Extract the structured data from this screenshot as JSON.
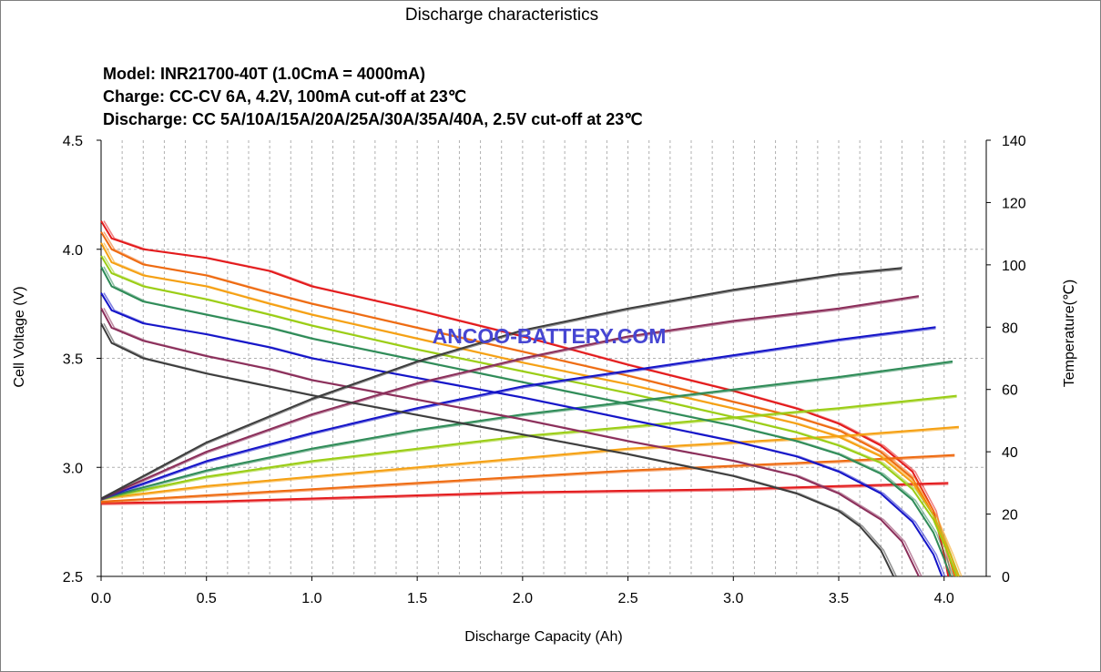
{
  "chart_data": {
    "type": "line",
    "title": "Discharge characteristics",
    "info_lines": [
      "Model: INR21700-40T (1.0CmA = 4000mA)",
      "Charge: CC-CV 6A, 4.2V, 100mA  cut-off at 23℃",
      "Discharge: CC 5A/10A/15A/20A/25A/30A/35A/40A,  2.5V cut-off at 23℃"
    ],
    "xlabel": "Discharge Capacity (Ah)",
    "ylabel": "Cell Voltage (V)",
    "y2label": "Temperature(℃)",
    "watermark": "ANCOO-BATTERY.COM",
    "xlim": [
      0,
      4.2
    ],
    "ylim": [
      2.5,
      4.5
    ],
    "y2lim": [
      0,
      140
    ],
    "xticks": [
      "0.0",
      "0.5",
      "1.0",
      "1.5",
      "2.0",
      "2.5",
      "3.0",
      "3.5",
      "4.0"
    ],
    "yticks": [
      "2.5",
      "3.0",
      "3.5",
      "4.0",
      "4.5"
    ],
    "y2ticks": [
      "0",
      "20",
      "40",
      "60",
      "80",
      "100",
      "120",
      "140"
    ],
    "grid": {
      "x_minor_step": 0.1,
      "y_step": 0.5,
      "style": "dashed"
    },
    "series": [
      {
        "color": "#e31a1c",
        "voltage": [
          [
            0,
            4.13
          ],
          [
            0.05,
            4.05
          ],
          [
            0.2,
            4.0
          ],
          [
            0.5,
            3.96
          ],
          [
            0.8,
            3.9
          ],
          [
            1.0,
            3.83
          ],
          [
            1.5,
            3.72
          ],
          [
            2.0,
            3.6
          ],
          [
            2.5,
            3.47
          ],
          [
            3.0,
            3.35
          ],
          [
            3.3,
            3.27
          ],
          [
            3.5,
            3.2
          ],
          [
            3.7,
            3.1
          ],
          [
            3.85,
            2.98
          ],
          [
            3.95,
            2.8
          ],
          [
            4.0,
            2.6
          ],
          [
            4.02,
            2.5
          ]
        ],
        "temperature": [
          [
            0,
            23.5
          ],
          [
            0.5,
            24
          ],
          [
            1.0,
            25
          ],
          [
            1.5,
            26
          ],
          [
            2.0,
            27
          ],
          [
            2.5,
            27.5
          ],
          [
            3.0,
            28
          ],
          [
            3.5,
            29
          ],
          [
            4.02,
            30
          ]
        ]
      },
      {
        "color": "#ee6a10",
        "voltage": [
          [
            0,
            4.08
          ],
          [
            0.05,
            4.0
          ],
          [
            0.2,
            3.93
          ],
          [
            0.5,
            3.88
          ],
          [
            0.8,
            3.8
          ],
          [
            1.0,
            3.75
          ],
          [
            1.5,
            3.64
          ],
          [
            2.0,
            3.53
          ],
          [
            2.5,
            3.42
          ],
          [
            3.0,
            3.3
          ],
          [
            3.3,
            3.23
          ],
          [
            3.5,
            3.17
          ],
          [
            3.7,
            3.07
          ],
          [
            3.85,
            2.95
          ],
          [
            3.95,
            2.78
          ],
          [
            4.02,
            2.6
          ],
          [
            4.05,
            2.5
          ]
        ],
        "temperature": [
          [
            0,
            24
          ],
          [
            0.5,
            26
          ],
          [
            1.0,
            28
          ],
          [
            1.5,
            30
          ],
          [
            2.0,
            32
          ],
          [
            2.5,
            34
          ],
          [
            3.0,
            35.5
          ],
          [
            3.5,
            37
          ],
          [
            4.05,
            39
          ]
        ]
      },
      {
        "color": "#f5a012",
        "voltage": [
          [
            0,
            4.03
          ],
          [
            0.05,
            3.94
          ],
          [
            0.2,
            3.88
          ],
          [
            0.5,
            3.83
          ],
          [
            0.8,
            3.75
          ],
          [
            1.0,
            3.7
          ],
          [
            1.5,
            3.59
          ],
          [
            2.0,
            3.48
          ],
          [
            2.5,
            3.38
          ],
          [
            3.0,
            3.27
          ],
          [
            3.3,
            3.2
          ],
          [
            3.5,
            3.14
          ],
          [
            3.7,
            3.05
          ],
          [
            3.85,
            2.93
          ],
          [
            3.95,
            2.78
          ],
          [
            4.03,
            2.6
          ],
          [
            4.07,
            2.5
          ]
        ],
        "temperature": [
          [
            0,
            25
          ],
          [
            0.5,
            29
          ],
          [
            1.0,
            32
          ],
          [
            1.5,
            35
          ],
          [
            2.0,
            38
          ],
          [
            2.5,
            41
          ],
          [
            3.0,
            43
          ],
          [
            3.5,
            45
          ],
          [
            4.07,
            48
          ]
        ]
      },
      {
        "color": "#9acd14",
        "voltage": [
          [
            0,
            3.97
          ],
          [
            0.05,
            3.89
          ],
          [
            0.2,
            3.83
          ],
          [
            0.5,
            3.77
          ],
          [
            0.8,
            3.7
          ],
          [
            1.0,
            3.65
          ],
          [
            1.5,
            3.54
          ],
          [
            2.0,
            3.44
          ],
          [
            2.5,
            3.34
          ],
          [
            3.0,
            3.23
          ],
          [
            3.3,
            3.16
          ],
          [
            3.5,
            3.1
          ],
          [
            3.7,
            3.02
          ],
          [
            3.85,
            2.9
          ],
          [
            3.95,
            2.76
          ],
          [
            4.02,
            2.6
          ],
          [
            4.06,
            2.5
          ]
        ],
        "temperature": [
          [
            0,
            25
          ],
          [
            0.5,
            32
          ],
          [
            1.0,
            37
          ],
          [
            1.5,
            41
          ],
          [
            2.0,
            45
          ],
          [
            2.5,
            48
          ],
          [
            3.0,
            51
          ],
          [
            3.5,
            54
          ],
          [
            4.06,
            58
          ]
        ]
      },
      {
        "color": "#2e8b57",
        "voltage": [
          [
            0,
            3.92
          ],
          [
            0.05,
            3.83
          ],
          [
            0.2,
            3.76
          ],
          [
            0.5,
            3.7
          ],
          [
            0.8,
            3.64
          ],
          [
            1.0,
            3.59
          ],
          [
            1.5,
            3.49
          ],
          [
            2.0,
            3.39
          ],
          [
            2.5,
            3.29
          ],
          [
            3.0,
            3.19
          ],
          [
            3.3,
            3.12
          ],
          [
            3.5,
            3.06
          ],
          [
            3.7,
            2.97
          ],
          [
            3.85,
            2.85
          ],
          [
            3.95,
            2.7
          ],
          [
            4.0,
            2.58
          ],
          [
            4.03,
            2.5
          ]
        ],
        "temperature": [
          [
            0,
            25
          ],
          [
            0.5,
            34
          ],
          [
            1.0,
            41
          ],
          [
            1.5,
            47
          ],
          [
            2.0,
            52
          ],
          [
            2.5,
            56
          ],
          [
            3.0,
            60
          ],
          [
            3.5,
            64
          ],
          [
            4.04,
            69
          ]
        ]
      },
      {
        "color": "#1414c8",
        "voltage": [
          [
            0,
            3.8
          ],
          [
            0.05,
            3.72
          ],
          [
            0.2,
            3.66
          ],
          [
            0.5,
            3.61
          ],
          [
            0.8,
            3.55
          ],
          [
            1.0,
            3.5
          ],
          [
            1.5,
            3.41
          ],
          [
            2.0,
            3.32
          ],
          [
            2.5,
            3.22
          ],
          [
            3.0,
            3.12
          ],
          [
            3.3,
            3.05
          ],
          [
            3.5,
            2.98
          ],
          [
            3.7,
            2.88
          ],
          [
            3.85,
            2.75
          ],
          [
            3.95,
            2.6
          ],
          [
            3.99,
            2.5
          ]
        ],
        "temperature": [
          [
            0,
            25
          ],
          [
            0.5,
            37
          ],
          [
            1.0,
            46
          ],
          [
            1.5,
            54
          ],
          [
            2.0,
            61
          ],
          [
            2.5,
            66
          ],
          [
            3.0,
            71
          ],
          [
            3.5,
            76
          ],
          [
            3.96,
            80
          ]
        ]
      },
      {
        "color": "#8b2e5a",
        "voltage": [
          [
            0,
            3.73
          ],
          [
            0.05,
            3.64
          ],
          [
            0.2,
            3.58
          ],
          [
            0.5,
            3.51
          ],
          [
            0.8,
            3.45
          ],
          [
            1.0,
            3.4
          ],
          [
            1.5,
            3.31
          ],
          [
            2.0,
            3.22
          ],
          [
            2.5,
            3.12
          ],
          [
            3.0,
            3.03
          ],
          [
            3.3,
            2.96
          ],
          [
            3.5,
            2.88
          ],
          [
            3.7,
            2.76
          ],
          [
            3.8,
            2.66
          ],
          [
            3.88,
            2.5
          ]
        ],
        "temperature": [
          [
            0,
            25
          ],
          [
            0.5,
            40
          ],
          [
            1.0,
            52
          ],
          [
            1.5,
            62
          ],
          [
            2.0,
            70
          ],
          [
            2.5,
            77
          ],
          [
            3.0,
            82
          ],
          [
            3.5,
            86
          ],
          [
            3.88,
            90
          ]
        ]
      },
      {
        "color": "#3c3c3c",
        "voltage": [
          [
            0,
            3.66
          ],
          [
            0.05,
            3.57
          ],
          [
            0.2,
            3.5
          ],
          [
            0.5,
            3.43
          ],
          [
            0.8,
            3.37
          ],
          [
            1.0,
            3.33
          ],
          [
            1.5,
            3.24
          ],
          [
            2.0,
            3.15
          ],
          [
            2.5,
            3.06
          ],
          [
            3.0,
            2.96
          ],
          [
            3.3,
            2.88
          ],
          [
            3.5,
            2.8
          ],
          [
            3.6,
            2.73
          ],
          [
            3.7,
            2.62
          ],
          [
            3.76,
            2.5
          ]
        ],
        "temperature": [
          [
            0,
            25
          ],
          [
            0.5,
            43
          ],
          [
            1.0,
            57
          ],
          [
            1.5,
            69
          ],
          [
            2.0,
            79
          ],
          [
            2.5,
            86
          ],
          [
            3.0,
            92
          ],
          [
            3.5,
            97
          ],
          [
            3.8,
            99
          ]
        ]
      }
    ]
  }
}
